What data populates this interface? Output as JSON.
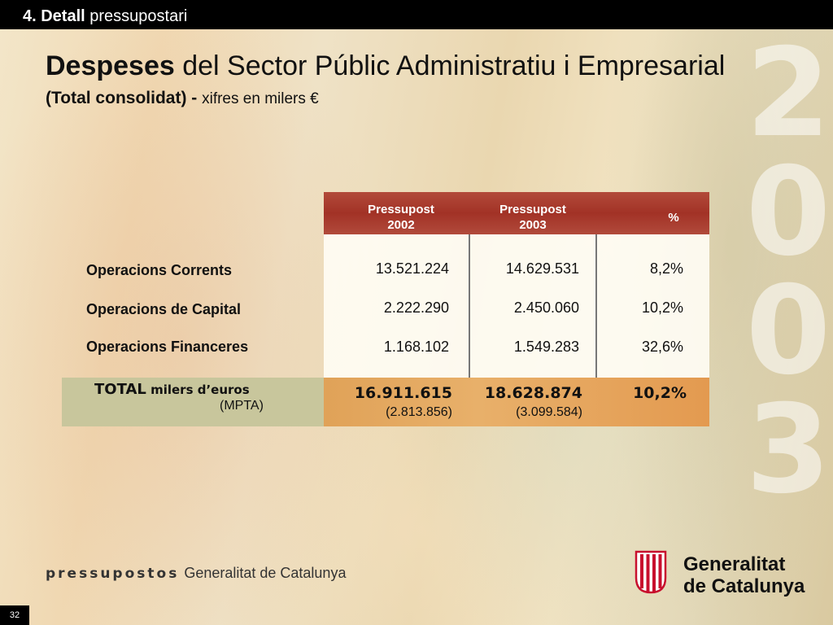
{
  "header": {
    "section_bold": "4. Detall",
    "section_rest": " pressupostari"
  },
  "title": {
    "bold": "Despeses",
    "rest": " del Sector Públic Administratiu i Empresarial",
    "sub_bold": "(Total consolidat)",
    "sub_dash": " - ",
    "sub_rest": "xifres en milers €"
  },
  "year_digits": [
    "2",
    "0",
    "0",
    "3"
  ],
  "table": {
    "columns": [
      {
        "line1": "Pressupost",
        "line2": "2002"
      },
      {
        "line1": "Pressupost",
        "line2": "2003"
      },
      {
        "line1": "%",
        "line2": ""
      }
    ],
    "rows": [
      {
        "label": "Operacions Corrents",
        "v2002": "13.521.224",
        "v2003": "14.629.531",
        "pct": "8,2%"
      },
      {
        "label": "Operacions de Capital",
        "v2002": "2.222.290",
        "v2003": "2.450.060",
        "pct": "10,2%"
      },
      {
        "label": "Operacions  Financeres",
        "v2002": "1.168.102",
        "v2003": "1.549.283",
        "pct": "32,6%"
      }
    ],
    "total": {
      "label_bold": "TOTAL",
      "label_rest": " milers d’euros",
      "label_sub": "(MPTA)",
      "v2002": "16.911.615",
      "v2003": "18.628.874",
      "pct": "10,2%",
      "mpta2002": "(2.813.856)",
      "mpta2003": "(3.099.584)"
    }
  },
  "footer": {
    "brand": "pressupostos",
    "org": "Generalitat de Catalunya",
    "logo_line1": "Generalitat",
    "logo_line2": "de Catalunya",
    "logo_icon": "senyera-icon"
  },
  "page_number": "32",
  "colors": {
    "header_band": "#a23226",
    "total_left": "#c8c69c",
    "total_right": "#e8b06a"
  }
}
